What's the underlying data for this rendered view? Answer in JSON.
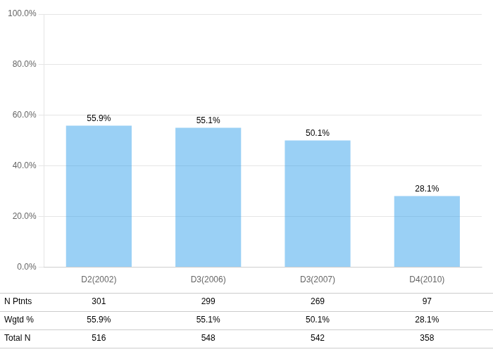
{
  "chart_data": {
    "type": "bar",
    "categories": [
      "D2(2002)",
      "D3(2006)",
      "D3(2007)",
      "D4(2010)"
    ],
    "values": [
      55.9,
      55.1,
      50.1,
      28.1
    ],
    "value_labels": [
      "55.9%",
      "55.1%",
      "50.1%",
      "28.1%"
    ],
    "data_labels": true,
    "ylim": [
      0,
      100
    ],
    "yticks": [
      {
        "value": 0,
        "label": "0.0%"
      },
      {
        "value": 20,
        "label": "20.0%"
      },
      {
        "value": 40,
        "label": "40.0%"
      },
      {
        "value": 60,
        "label": "60.0%"
      },
      {
        "value": 80,
        "label": "80.0%"
      },
      {
        "value": 100,
        "label": "100.0%"
      }
    ],
    "grid": true,
    "table": [
      {
        "label": "N Ptnts",
        "values": [
          301,
          299,
          269,
          97
        ]
      },
      {
        "label": "Wgtd %",
        "values": [
          55.9,
          55.1,
          50.1,
          28.1
        ],
        "value_labels": [
          "55.9%",
          "55.1%",
          "50.1%",
          "28.1%"
        ]
      },
      {
        "label": "Total N",
        "values": [
          516,
          548,
          542,
          358
        ]
      }
    ]
  }
}
